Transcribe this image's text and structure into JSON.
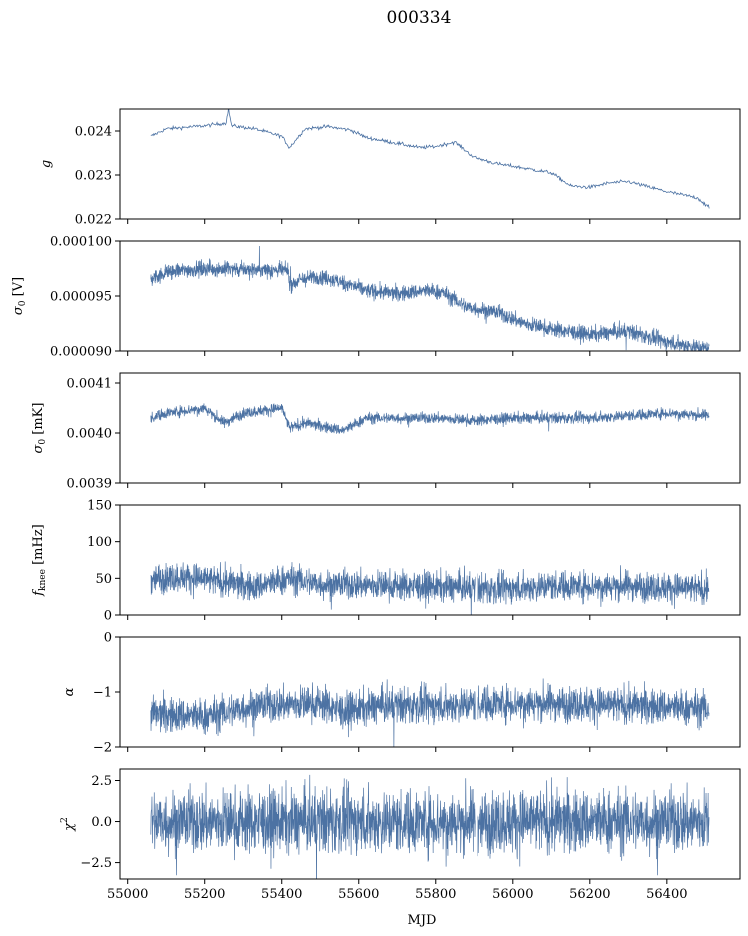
{
  "figure": {
    "title": "000334",
    "xlabel": "MJD",
    "xlim": [
      54980,
      56590
    ],
    "xticks": [
      55000,
      55200,
      55400,
      55600,
      55800,
      56000,
      56200,
      56400
    ],
    "xtick_labels": [
      "55000",
      "55200",
      "55400",
      "55600",
      "55800",
      "56000",
      "56200",
      "56400"
    ],
    "colors": {
      "line": "#4c72a3",
      "axis": "#000000",
      "background": "#ffffff"
    }
  },
  "chart_data": [
    {
      "type": "line",
      "name": "g",
      "ylabel_main": "g",
      "ylabel_sub": "",
      "ylabel_unit": "",
      "ylim": [
        0.022,
        0.0245
      ],
      "yticks": [
        0.022,
        0.023,
        0.024
      ],
      "ytick_labels": [
        "0.022",
        "0.023",
        "0.024"
      ],
      "x_start": 55060,
      "x_end": 56510,
      "noise": 2e-05,
      "thick": false,
      "trend": [
        [
          55060,
          0.02388
        ],
        [
          55100,
          0.02405
        ],
        [
          55200,
          0.02412
        ],
        [
          55255,
          0.02418
        ],
        [
          55262,
          0.0245
        ],
        [
          55270,
          0.02412
        ],
        [
          55330,
          0.02405
        ],
        [
          55400,
          0.02388
        ],
        [
          55420,
          0.02362
        ],
        [
          55460,
          0.02405
        ],
        [
          55520,
          0.0241
        ],
        [
          55580,
          0.02402
        ],
        [
          55620,
          0.02385
        ],
        [
          55700,
          0.02372
        ],
        [
          55760,
          0.02362
        ],
        [
          55800,
          0.02365
        ],
        [
          55850,
          0.02375
        ],
        [
          55900,
          0.0234
        ],
        [
          55960,
          0.02325
        ],
        [
          56000,
          0.0232
        ],
        [
          56100,
          0.02305
        ],
        [
          56150,
          0.02275
        ],
        [
          56200,
          0.02272
        ],
        [
          56250,
          0.02282
        ],
        [
          56300,
          0.02285
        ],
        [
          56400,
          0.02262
        ],
        [
          56480,
          0.02248
        ],
        [
          56510,
          0.02225
        ]
      ]
    },
    {
      "type": "line",
      "name": "sigma0 V",
      "ylabel_main": "σ",
      "ylabel_sub": "0",
      "ylabel_unit": "[V]",
      "ylim": [
        9e-05,
        0.0001
      ],
      "yticks": [
        9e-05,
        9.5e-05,
        0.0001
      ],
      "ytick_labels": [
        "0.000090",
        "0.000095",
        "0.000100"
      ],
      "x_start": 55060,
      "x_end": 56510,
      "noise": 3.5e-07,
      "thick": true,
      "trend": [
        [
          55060,
          9.65e-05
        ],
        [
          55100,
          9.72e-05
        ],
        [
          55200,
          9.75e-05
        ],
        [
          55300,
          9.74e-05
        ],
        [
          55418,
          9.73e-05
        ],
        [
          55420,
          9.6e-05
        ],
        [
          55450,
          9.65e-05
        ],
        [
          55500,
          9.68e-05
        ],
        [
          55560,
          9.62e-05
        ],
        [
          55620,
          9.55e-05
        ],
        [
          55700,
          9.52e-05
        ],
        [
          55780,
          9.55e-05
        ],
        [
          55820,
          9.53e-05
        ],
        [
          55880,
          9.4e-05
        ],
        [
          55960,
          9.35e-05
        ],
        [
          56030,
          9.25e-05
        ],
        [
          56100,
          9.2e-05
        ],
        [
          56200,
          9.15e-05
        ],
        [
          56300,
          9.18e-05
        ],
        [
          56400,
          9.08e-05
        ],
        [
          56510,
          9.02e-05
        ]
      ]
    },
    {
      "type": "line",
      "name": "sigma0 mK",
      "ylabel_main": "σ",
      "ylabel_sub": "0",
      "ylabel_unit": "[mK]",
      "ylim": [
        0.0039,
        0.00412
      ],
      "yticks": [
        0.0039,
        0.004,
        0.0041
      ],
      "ytick_labels": [
        "0.0039",
        "0.0040",
        "0.0041"
      ],
      "x_start": 55060,
      "x_end": 56510,
      "noise": 5.5e-06,
      "thick": true,
      "trend": [
        [
          55060,
          0.00403
        ],
        [
          55100,
          0.00404
        ],
        [
          55200,
          0.00405
        ],
        [
          55250,
          0.00402
        ],
        [
          55300,
          0.00404
        ],
        [
          55400,
          0.00405
        ],
        [
          55420,
          0.00401
        ],
        [
          55460,
          0.00402
        ],
        [
          55560,
          0.004005
        ],
        [
          55620,
          0.00403
        ],
        [
          55800,
          0.00403
        ],
        [
          55900,
          0.004025
        ],
        [
          56000,
          0.00403
        ],
        [
          56200,
          0.00403
        ],
        [
          56400,
          0.00404
        ],
        [
          56510,
          0.004035
        ]
      ]
    },
    {
      "type": "line",
      "name": "fknee",
      "ylabel_main": "f",
      "ylabel_sub": "knee",
      "ylabel_unit": "[mHz]",
      "ylim": [
        0,
        150
      ],
      "yticks": [
        0,
        50,
        100,
        150
      ],
      "ytick_labels": [
        "0",
        "50",
        "100",
        "150"
      ],
      "x_start": 55060,
      "x_end": 56510,
      "noise": 10,
      "thick": true,
      "trend": [
        [
          55060,
          50
        ],
        [
          55150,
          52
        ],
        [
          55250,
          45
        ],
        [
          55330,
          38
        ],
        [
          55420,
          50
        ],
        [
          55500,
          42
        ],
        [
          55700,
          40
        ],
        [
          55850,
          38
        ],
        [
          55960,
          35
        ],
        [
          56100,
          40
        ],
        [
          56300,
          40
        ],
        [
          56510,
          35
        ]
      ]
    },
    {
      "type": "line",
      "name": "alpha",
      "ylabel_main": "α",
      "ylabel_sub": "",
      "ylabel_unit": "",
      "ylim": [
        -2,
        0
      ],
      "yticks": [
        -2,
        -1,
        0
      ],
      "ytick_labels": [
        "−2",
        "−1",
        "0"
      ],
      "x_start": 55060,
      "x_end": 56510,
      "noise": 0.16,
      "thick": true,
      "trend": [
        [
          55060,
          -1.4
        ],
        [
          55200,
          -1.45
        ],
        [
          55330,
          -1.25
        ],
        [
          55500,
          -1.2
        ],
        [
          55560,
          -1.35
        ],
        [
          55650,
          -1.25
        ],
        [
          55800,
          -1.25
        ],
        [
          55960,
          -1.2
        ],
        [
          56100,
          -1.2
        ],
        [
          56300,
          -1.25
        ],
        [
          56510,
          -1.3
        ]
      ]
    },
    {
      "type": "line",
      "name": "chi2",
      "ylabel_main": "χ",
      "ylabel_sub": "",
      "ylabel_sup": "2",
      "ylabel_unit": "",
      "ylim": [
        -3.5,
        3.2
      ],
      "yticks": [
        -2.5,
        0,
        2.5
      ],
      "ytick_labels": [
        "−2.5",
        "0.0",
        "2.5"
      ],
      "x_start": 55060,
      "x_end": 56510,
      "noise": 0.95,
      "thick": true,
      "trend": [
        [
          55060,
          0
        ],
        [
          56510,
          0
        ]
      ]
    }
  ]
}
